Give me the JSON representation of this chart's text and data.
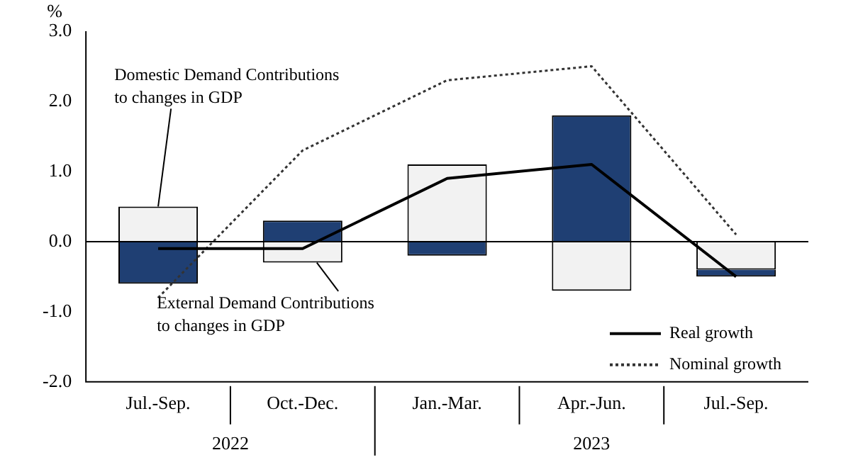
{
  "chart_data": {
    "type": "bar",
    "stacked": true,
    "ylabel": "%",
    "categories": [
      "Jul.-Sep.",
      "Oct.-Dec.",
      "Jan.-Mar.",
      "Apr.-Jun.",
      "Jul.-Sep."
    ],
    "series": [
      {
        "color": "#f2f2f2",
        "values": [
          0.5,
          -0.3,
          1.1,
          -0.7,
          -0.4
        ]
      },
      {
        "color": "#1f3f73",
        "values": [
          -0.6,
          0.3,
          -0.2,
          1.8,
          -0.1
        ]
      },
      {
        "type": "line",
        "name": "Real growth",
        "color": "#000000",
        "line_style": "solid",
        "values": [
          -0.1,
          -0.1,
          0.9,
          1.1,
          -0.5
        ]
      },
      {
        "type": "line",
        "name": "Nominal growth",
        "color": "#333333",
        "line_style": "dotted",
        "values": [
          -0.8,
          1.3,
          2.3,
          2.5,
          0.1
        ]
      }
    ],
    "ylim": [
      -2,
      3
    ],
    "yticks": [
      {
        "value": 3,
        "label": "3.0"
      },
      {
        "value": 2,
        "label": "2.0"
      },
      {
        "value": 1,
        "label": "1.0"
      },
      {
        "value": 0,
        "label": "0.0"
      },
      {
        "value": -1,
        "label": "-1.0"
      },
      {
        "value": -2,
        "label": "-2.0"
      }
    ],
    "grid": false,
    "marker": "none",
    "legend": "bottom right",
    "ref_lines": [
      {
        "axis": "y",
        "value": 0,
        "color": "#000000"
      }
    ],
    "annotations": [
      {
        "text": "Domestic Demand Contributions\nto changes in GDP",
        "x": "Jul.-Sep.",
        "y": 0.5
      },
      {
        "text": "External Demand Contributions\nto changes in GDP",
        "x": "Oct.-Dec.",
        "y": -0.3
      },
      "2022",
      "2023"
    ]
  }
}
